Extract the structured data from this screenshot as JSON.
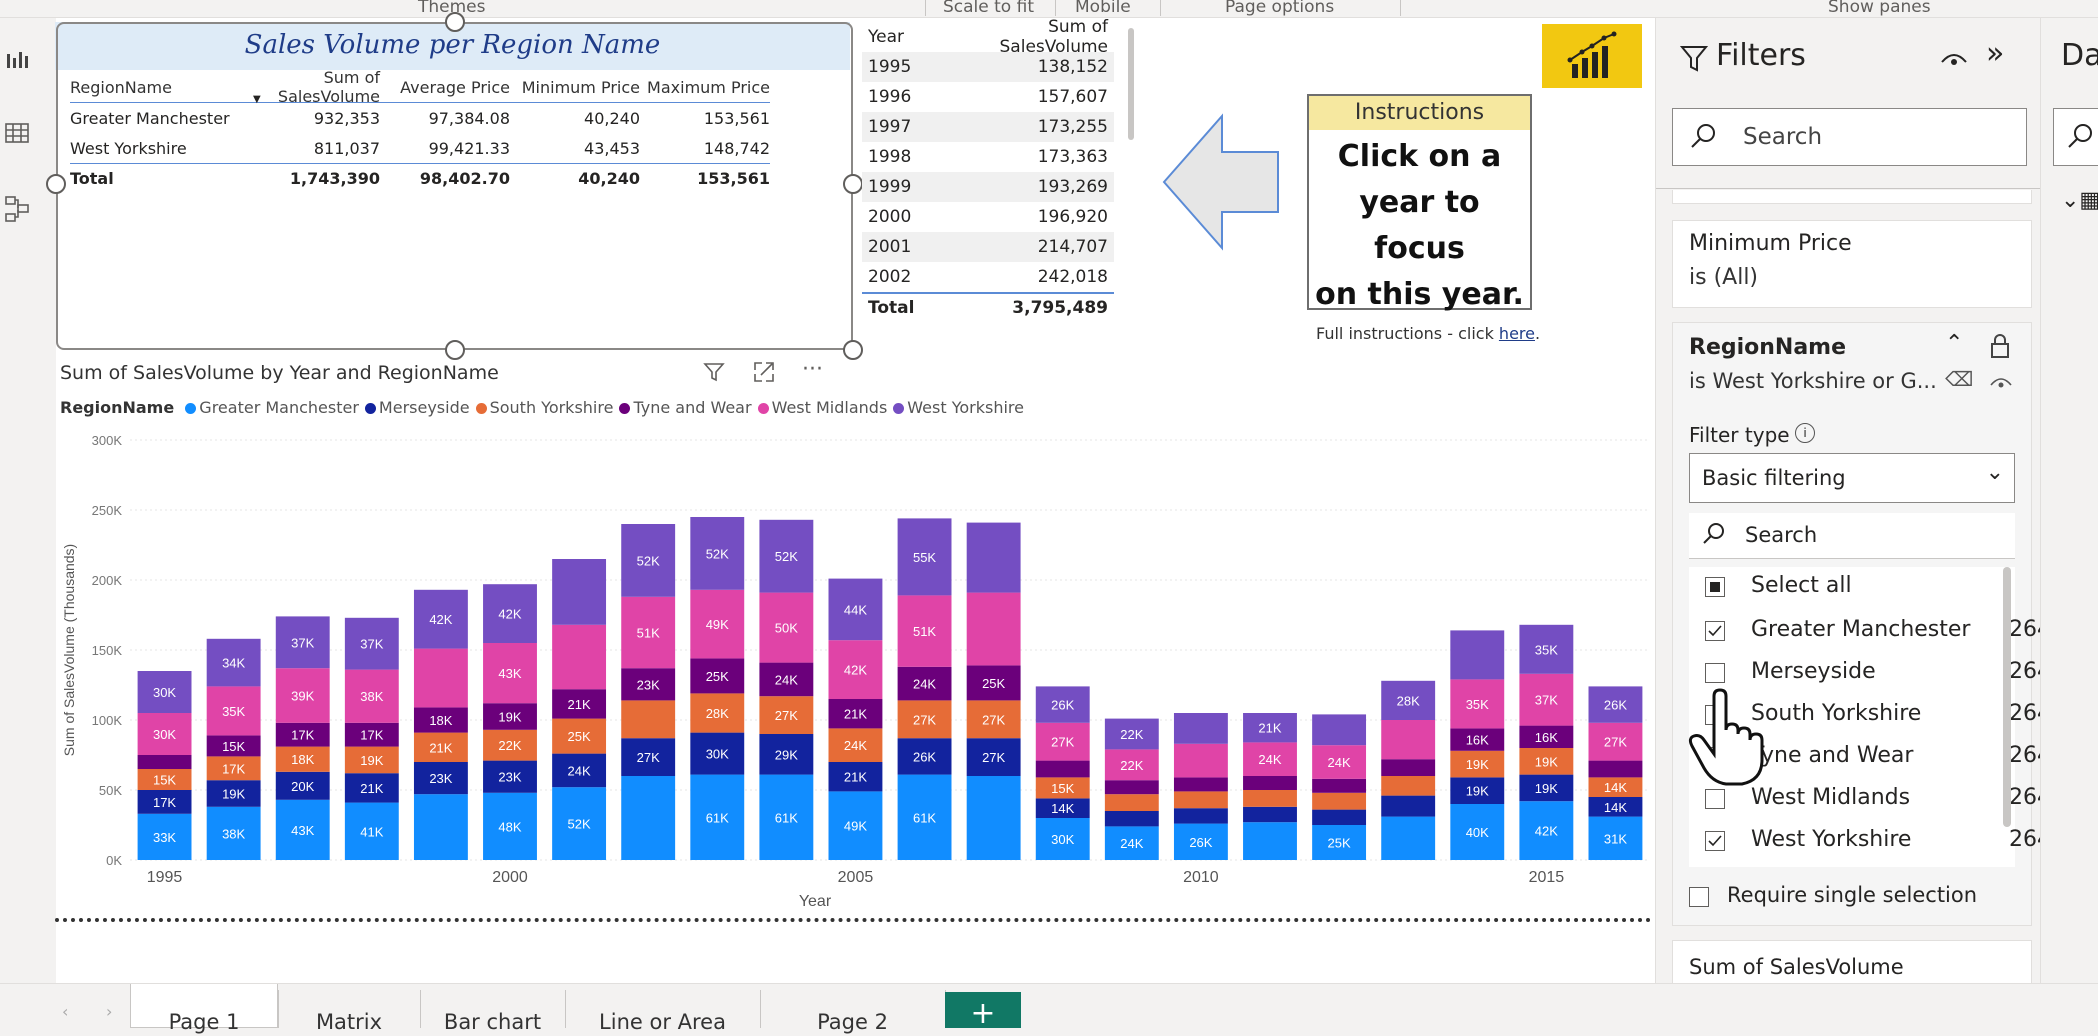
{
  "topbar": {
    "themes": "Themes",
    "scale_to_fit": "Scale to fit",
    "mobile": "Mobile",
    "page_options": "Page options",
    "show_panes": "Show panes"
  },
  "matrix": {
    "title": "Sales Volume per Region Name",
    "headers": [
      "RegionName",
      "Sum of SalesVolume",
      "Average Price",
      "Minimum Price",
      "Maximum Price"
    ],
    "rows": [
      [
        "Greater Manchester",
        "932,353",
        "97,384.08",
        "40,240",
        "153,561"
      ],
      [
        "West Yorkshire",
        "811,037",
        "99,421.33",
        "43,453",
        "148,742"
      ]
    ],
    "total": [
      "Total",
      "1,743,390",
      "98,402.70",
      "40,240",
      "153,561"
    ]
  },
  "year_table": {
    "headers": [
      "Year",
      "Sum of SalesVolume"
    ],
    "rows": [
      [
        "1995",
        "138,152"
      ],
      [
        "1996",
        "157,607"
      ],
      [
        "1997",
        "173,255"
      ],
      [
        "1998",
        "173,363"
      ],
      [
        "1999",
        "193,269"
      ],
      [
        "2000",
        "196,920"
      ],
      [
        "2001",
        "214,707"
      ],
      [
        "2002",
        "242,018"
      ]
    ],
    "total": [
      "Total",
      "3,795,489"
    ]
  },
  "instructions": {
    "header": "Instructions",
    "body_lines": [
      "Click on a",
      "year to focus",
      "on this year."
    ],
    "full_prefix": "Full instructions - click ",
    "full_link": "here",
    "full_suffix": "."
  },
  "chart_title": "Sum of SalesVolume by Year and RegionName",
  "legend": {
    "title": "RegionName"
  },
  "colors": {
    "accent": "#f2c811",
    "add_tab": "#117865"
  },
  "chart_data": {
    "type": "bar",
    "stacked": true,
    "title": "Sum of SalesVolume by Year and RegionName",
    "xlabel": "Year",
    "ylabel": "Sum of SalesVolume (Thousands)",
    "ylim": [
      0,
      300000
    ],
    "yticks": [
      "0K",
      "50K",
      "100K",
      "150K",
      "200K",
      "250K",
      "300K"
    ],
    "xticks": [
      {
        "label": "1995",
        "index": 0
      },
      {
        "label": "2000",
        "index": 5
      },
      {
        "label": "2005",
        "index": 10
      },
      {
        "label": "2010",
        "index": 15
      },
      {
        "label": "2015",
        "index": 20
      }
    ],
    "categories": [
      "1995",
      "1996",
      "1997",
      "1998",
      "1999",
      "2000",
      "2001",
      "2002",
      "2003",
      "2004",
      "2005",
      "2006",
      "2007",
      "2008",
      "2009",
      "2010",
      "2011",
      "2012",
      "2013",
      "2014",
      "2015",
      "2016"
    ],
    "legend_position": "top-left",
    "series": [
      {
        "name": "Greater Manchester",
        "color": "#118dff",
        "values": [
          33000,
          38000,
          43000,
          41000,
          47000,
          48000,
          52000,
          60000,
          61000,
          61000,
          49000,
          61000,
          60000,
          30000,
          24000,
          26000,
          27000,
          25000,
          31000,
          40000,
          42000,
          31000
        ],
        "labels": [
          "33K",
          "38K",
          "43K",
          "41K",
          "",
          "48K",
          "52K",
          "",
          "61K",
          "61K",
          "49K",
          "61K",
          "",
          "30K",
          "24K",
          "26K",
          "",
          "25K",
          "",
          "40K",
          "42K",
          "31K"
        ]
      },
      {
        "name": "Merseyside",
        "color": "#12239e",
        "values": [
          17000,
          19000,
          20000,
          21000,
          23000,
          23000,
          24000,
          27000,
          30000,
          29000,
          21000,
          26000,
          27000,
          14000,
          11000,
          11000,
          11000,
          11000,
          15000,
          19000,
          19000,
          14000
        ],
        "labels": [
          "17K",
          "19K",
          "20K",
          "21K",
          "23K",
          "23K",
          "24K",
          "27K",
          "30K",
          "29K",
          "21K",
          "26K",
          "27K",
          "14K",
          "",
          "",
          "",
          "",
          "",
          "19K",
          "19K",
          "14K"
        ]
      },
      {
        "name": "South Yorkshire",
        "color": "#e66c37",
        "values": [
          15000,
          17000,
          18000,
          19000,
          21000,
          22000,
          25000,
          27000,
          28000,
          27000,
          24000,
          27000,
          27000,
          15000,
          12000,
          12000,
          12000,
          12000,
          14000,
          19000,
          19000,
          14000
        ],
        "labels": [
          "15K",
          "17K",
          "18K",
          "19K",
          "21K",
          "22K",
          "25K",
          "",
          "28K",
          "27K",
          "24K",
          "27K",
          "27K",
          "15K",
          "",
          "",
          "",
          "",
          "",
          "19K",
          "19K",
          "14K"
        ]
      },
      {
        "name": "Tyne and Wear",
        "color": "#6b007b",
        "values": [
          10000,
          15000,
          17000,
          17000,
          18000,
          19000,
          21000,
          23000,
          25000,
          24000,
          21000,
          24000,
          25000,
          12000,
          10000,
          10000,
          10000,
          10000,
          12000,
          16000,
          16000,
          12000
        ],
        "labels": [
          "",
          "15K",
          "17K",
          "17K",
          "18K",
          "19K",
          "21K",
          "23K",
          "25K",
          "24K",
          "21K",
          "24K",
          "25K",
          "",
          "",
          "",
          "",
          "",
          "",
          "16K",
          "16K",
          ""
        ]
      },
      {
        "name": "West Midlands",
        "color": "#e044a7",
        "values": [
          30000,
          35000,
          39000,
          38000,
          42000,
          43000,
          46000,
          51000,
          49000,
          50000,
          42000,
          51000,
          52000,
          27000,
          22000,
          24000,
          24000,
          24000,
          28000,
          35000,
          37000,
          27000
        ],
        "labels": [
          "30K",
          "35K",
          "39K",
          "38K",
          "",
          "43K",
          "",
          "51K",
          "49K",
          "50K",
          "42K",
          "51K",
          "",
          "27K",
          "22K",
          "",
          "24K",
          "24K",
          "",
          "35K",
          "37K",
          "27K"
        ]
      },
      {
        "name": "West Yorkshire",
        "color": "#744ec2",
        "values": [
          30000,
          34000,
          37000,
          37000,
          42000,
          42000,
          47000,
          52000,
          52000,
          52000,
          44000,
          55000,
          50000,
          26000,
          22000,
          22000,
          21000,
          22000,
          28000,
          35000,
          35000,
          26000
        ],
        "labels": [
          "30K",
          "34K",
          "37K",
          "37K",
          "42K",
          "42K",
          "",
          "52K",
          "52K",
          "52K",
          "44K",
          "55K",
          "",
          "26K",
          "22K",
          "",
          "21K",
          "",
          "28K",
          "",
          "35K",
          "26K"
        ]
      }
    ]
  },
  "filters": {
    "title": "Filters",
    "search_placeholder": "Search",
    "min_price_title": "Minimum Price",
    "min_price_value": "is (All)",
    "region_title": "RegionName",
    "region_value": "is West Yorkshire or G...",
    "filter_type_label": "Filter type",
    "filter_type_value": "Basic filtering",
    "list_search": "Search",
    "select_all": "Select all",
    "items": [
      {
        "label": "Greater Manchester",
        "count": "264",
        "checked": true
      },
      {
        "label": "Merseyside",
        "count": "264",
        "checked": false
      },
      {
        "label": "South Yorkshire",
        "count": "264",
        "checked": false
      },
      {
        "label": "Tyne and Wear",
        "count": "264",
        "checked": false
      },
      {
        "label": "West Midlands",
        "count": "264",
        "checked": false
      },
      {
        "label": "West Yorkshire",
        "count": "264",
        "checked": true
      }
    ],
    "require_single": "Require single selection",
    "sum_card_title": "Sum of SalesVolume"
  },
  "right_pane": {
    "title": "Da"
  },
  "tabs": [
    {
      "label": "Page 1",
      "active": true
    },
    {
      "label": "Matrix"
    },
    {
      "label": "Bar chart"
    },
    {
      "label": "Line or Area"
    },
    {
      "label": "Page 2"
    }
  ],
  "add_tab": "+"
}
